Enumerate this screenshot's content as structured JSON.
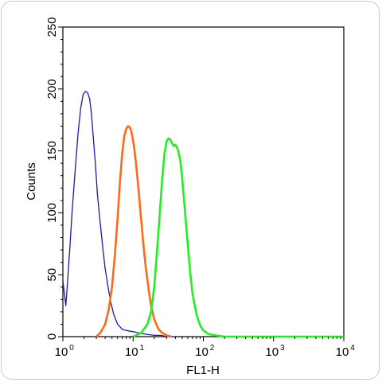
{
  "chart_data": {
    "type": "line",
    "title": "",
    "xlabel": "FL1-H",
    "ylabel": "Counts",
    "x_scale": "log",
    "xlim": [
      1,
      10000
    ],
    "ylim": [
      0,
      250
    ],
    "grid": false,
    "legend": "none",
    "x_ticks": [
      {
        "value": 1,
        "base": "10",
        "exp": "0"
      },
      {
        "value": 10,
        "base": "10",
        "exp": "1"
      },
      {
        "value": 100,
        "base": "10",
        "exp": "2"
      },
      {
        "value": 1000,
        "base": "10",
        "exp": "3"
      },
      {
        "value": 10000,
        "base": "10",
        "exp": "4"
      }
    ],
    "y_ticks": [
      0,
      50,
      100,
      150,
      200,
      250
    ],
    "series": [
      {
        "color": "#1a1aa6",
        "x": [
          1.0,
          1.05,
          1.1,
          1.15,
          1.25,
          1.35,
          1.5,
          1.65,
          1.8,
          1.95,
          2.1,
          2.25,
          2.4,
          2.55,
          2.7,
          2.9,
          3.1,
          3.4,
          3.7,
          4.0,
          4.4,
          4.8,
          5.3,
          6.0,
          7.0,
          8.0,
          10.0,
          12.0,
          15.0,
          20.0,
          25.0,
          30.0,
          40.0
        ],
        "y": [
          45,
          35,
          25,
          40,
          70,
          100,
          135,
          165,
          185,
          196,
          198,
          197,
          192,
          180,
          162,
          140,
          115,
          92,
          72,
          55,
          40,
          28,
          18,
          10,
          6,
          5,
          4,
          3,
          2,
          1,
          1,
          0,
          0
        ]
      },
      {
        "color": "#ff6a1a",
        "x": [
          3.0,
          3.5,
          4.0,
          4.5,
          5.0,
          5.5,
          6.0,
          6.5,
          7.0,
          7.5,
          8.0,
          8.5,
          9.0,
          9.5,
          10.0,
          10.5,
          11.0,
          12.0,
          13.0,
          14.0,
          15.0,
          16.5,
          18.0,
          20.0,
          23.0,
          26.0,
          30.0,
          35.0
        ],
        "y": [
          0,
          4,
          10,
          22,
          40,
          65,
          95,
          125,
          148,
          162,
          168,
          170,
          169,
          165,
          158,
          150,
          140,
          118,
          95,
          75,
          58,
          40,
          25,
          14,
          6,
          3,
          1,
          0
        ]
      },
      {
        "color": "#22ee22",
        "x": [
          10.0,
          13.0,
          16.0,
          18.0,
          20.0,
          22.0,
          24.0,
          26.0,
          28.0,
          30.0,
          32.0,
          34.0,
          36.0,
          38.0,
          40.0,
          42.0,
          44.0,
          47.0,
          50.0,
          55.0,
          60.0,
          65.0,
          70.0,
          80.0,
          90.0,
          100.0,
          120.0,
          150.0,
          200.0,
          400.0,
          1000.0,
          10000.0
        ],
        "y": [
          0,
          3,
          10,
          20,
          40,
          70,
          100,
          128,
          148,
          158,
          160,
          159,
          156,
          154,
          155,
          153,
          150,
          142,
          128,
          100,
          75,
          52,
          35,
          18,
          9,
          5,
          2,
          1,
          0,
          0,
          0,
          0
        ]
      }
    ]
  }
}
